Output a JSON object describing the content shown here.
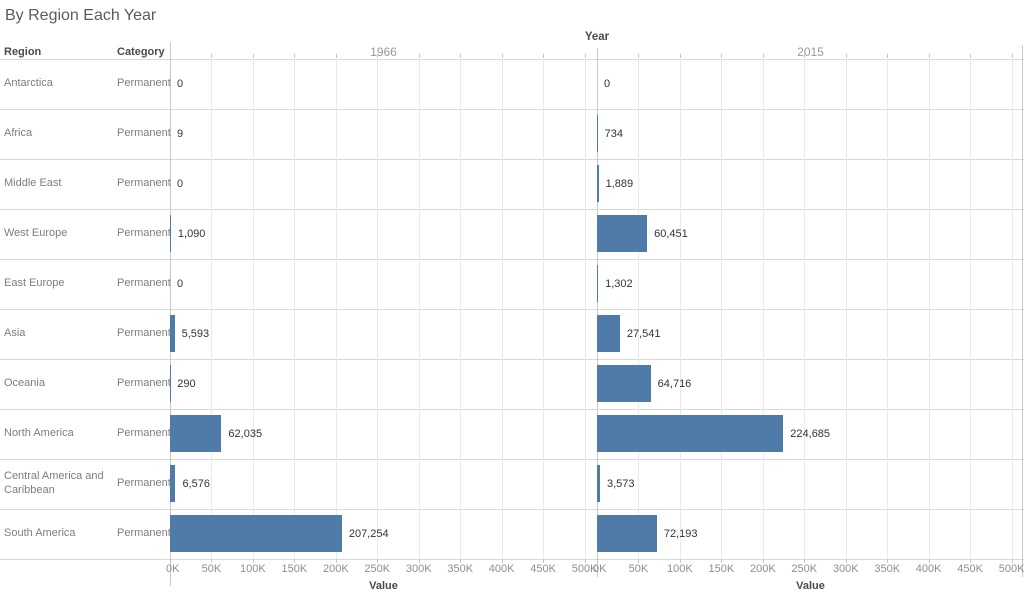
{
  "title": "By Region Each Year",
  "colors": {
    "bar": "#4e7ba7",
    "row_line": "#d8d8d8",
    "grid_line": "#eaeaea",
    "axis_line": "#c8c8c8",
    "dark_text": "#4b4b4b",
    "muted_text": "#7d7d7d",
    "tick_text": "#8e8e8e",
    "panel_year_text": "#9a9a9a",
    "value_text": "#333333"
  },
  "table": {
    "region_header": "Region",
    "category_header": "Category"
  },
  "axis": {
    "year_label": "Year",
    "value_label": "Value",
    "ticks": [
      "0K",
      "50K",
      "100K",
      "150K",
      "200K",
      "250K",
      "300K",
      "350K",
      "400K",
      "450K",
      "500K"
    ],
    "tick_values": [
      0,
      50000,
      100000,
      150000,
      200000,
      250000,
      300000,
      350000,
      400000,
      450000,
      500000
    ],
    "max_value": 515000
  },
  "panels": [
    {
      "year": "1966"
    },
    {
      "year": "2015"
    }
  ],
  "rows": [
    {
      "region": "Antarctica",
      "category": "Permanent",
      "values": [
        0,
        0
      ],
      "labels": [
        "0",
        "0"
      ]
    },
    {
      "region": "Africa",
      "category": "Permanent",
      "values": [
        9,
        734
      ],
      "labels": [
        "9",
        "734"
      ]
    },
    {
      "region": "Middle East",
      "category": "Permanent",
      "values": [
        0,
        1889
      ],
      "labels": [
        "0",
        "1,889"
      ]
    },
    {
      "region": "West Europe",
      "category": "Permanent",
      "values": [
        1090,
        60451
      ],
      "labels": [
        "1,090",
        "60,451"
      ]
    },
    {
      "region": "East Europe",
      "category": "Permanent",
      "values": [
        0,
        1302
      ],
      "labels": [
        "0",
        "1,302"
      ]
    },
    {
      "region": "Asia",
      "category": "Permanent",
      "values": [
        5593,
        27541
      ],
      "labels": [
        "5,593",
        "27,541"
      ]
    },
    {
      "region": "Oceania",
      "category": "Permanent",
      "values": [
        290,
        64716
      ],
      "labels": [
        "290",
        "64,716"
      ]
    },
    {
      "region": "North America",
      "category": "Permanent",
      "values": [
        62035,
        224685
      ],
      "labels": [
        "62,035",
        "224,685"
      ]
    },
    {
      "region": "Central America and Caribbean",
      "category": "Permanent",
      "values": [
        6576,
        3573
      ],
      "labels": [
        "6,576",
        "3,573"
      ]
    },
    {
      "region": "South America",
      "category": "Permanent",
      "values": [
        207254,
        72193
      ],
      "labels": [
        "207,254",
        "72,193"
      ]
    }
  ],
  "chart_data": {
    "type": "bar",
    "orientation": "horizontal",
    "title": "By Region Each Year",
    "panel_header": "Year",
    "categories": [
      "Antarctica",
      "Africa",
      "Middle East",
      "West Europe",
      "East Europe",
      "Asia",
      "Oceania",
      "North America",
      "Central America and Caribbean",
      "South America"
    ],
    "category_label": "Permanent",
    "series": [
      {
        "name": "1966",
        "values": [
          0,
          9,
          0,
          1090,
          0,
          5593,
          290,
          62035,
          6576,
          207254
        ]
      },
      {
        "name": "2015",
        "values": [
          0,
          734,
          1889,
          60451,
          1302,
          27541,
          64716,
          224685,
          3573,
          72193
        ]
      }
    ],
    "xlabel": "Value",
    "ylabel": "",
    "xlim": [
      0,
      515000
    ],
    "xticks": [
      0,
      50000,
      100000,
      150000,
      200000,
      250000,
      300000,
      350000,
      400000,
      450000,
      500000
    ],
    "grid": true,
    "legend": false,
    "bar_color": "#4e7ba7"
  }
}
